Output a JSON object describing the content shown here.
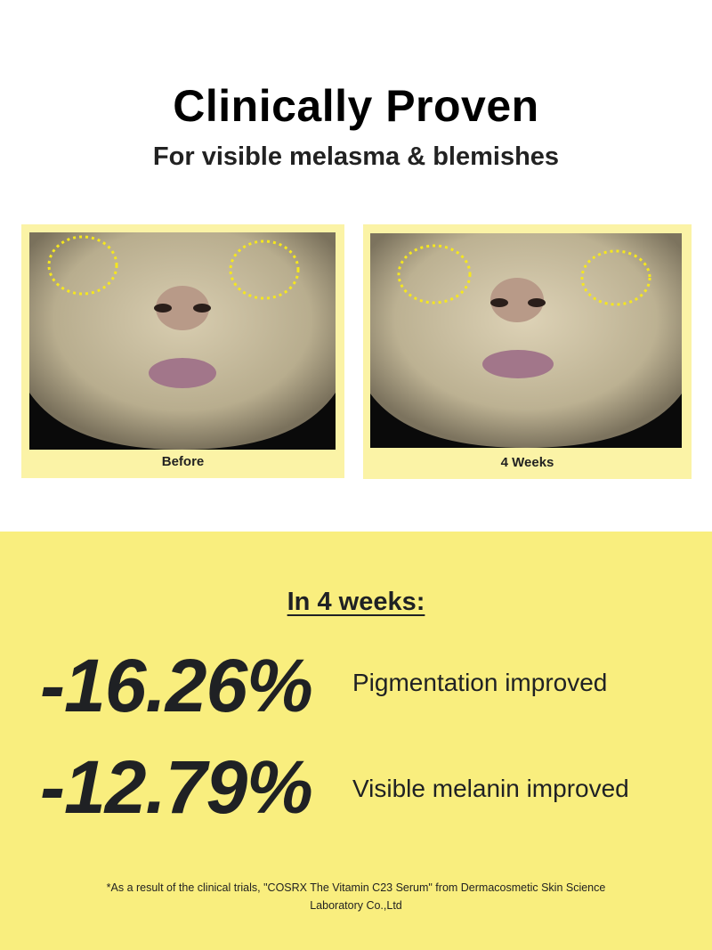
{
  "header": {
    "title": "Clinically Proven",
    "subtitle": "For visible melasma & blemishes"
  },
  "comparison": [
    {
      "caption": "Before"
    },
    {
      "caption": "4 Weeks"
    }
  ],
  "results": {
    "heading": "In 4 weeks:",
    "stats": [
      {
        "value": "-16.26%",
        "label": "Pigmentation improved"
      },
      {
        "value": "-12.79%",
        "label": "Visible melanin improved"
      }
    ],
    "footnote": "*As a result of the clinical trials, \"COSRX The Vitamin C23 Serum\" from Dermacosmetic Skin Science Laboratory Co.,Ltd"
  },
  "colors": {
    "accent_yellow": "#f9ee7e",
    "frame_yellow": "#fbf3a6",
    "marker_yellow": "#f5e71e",
    "text": "#1f2124"
  }
}
